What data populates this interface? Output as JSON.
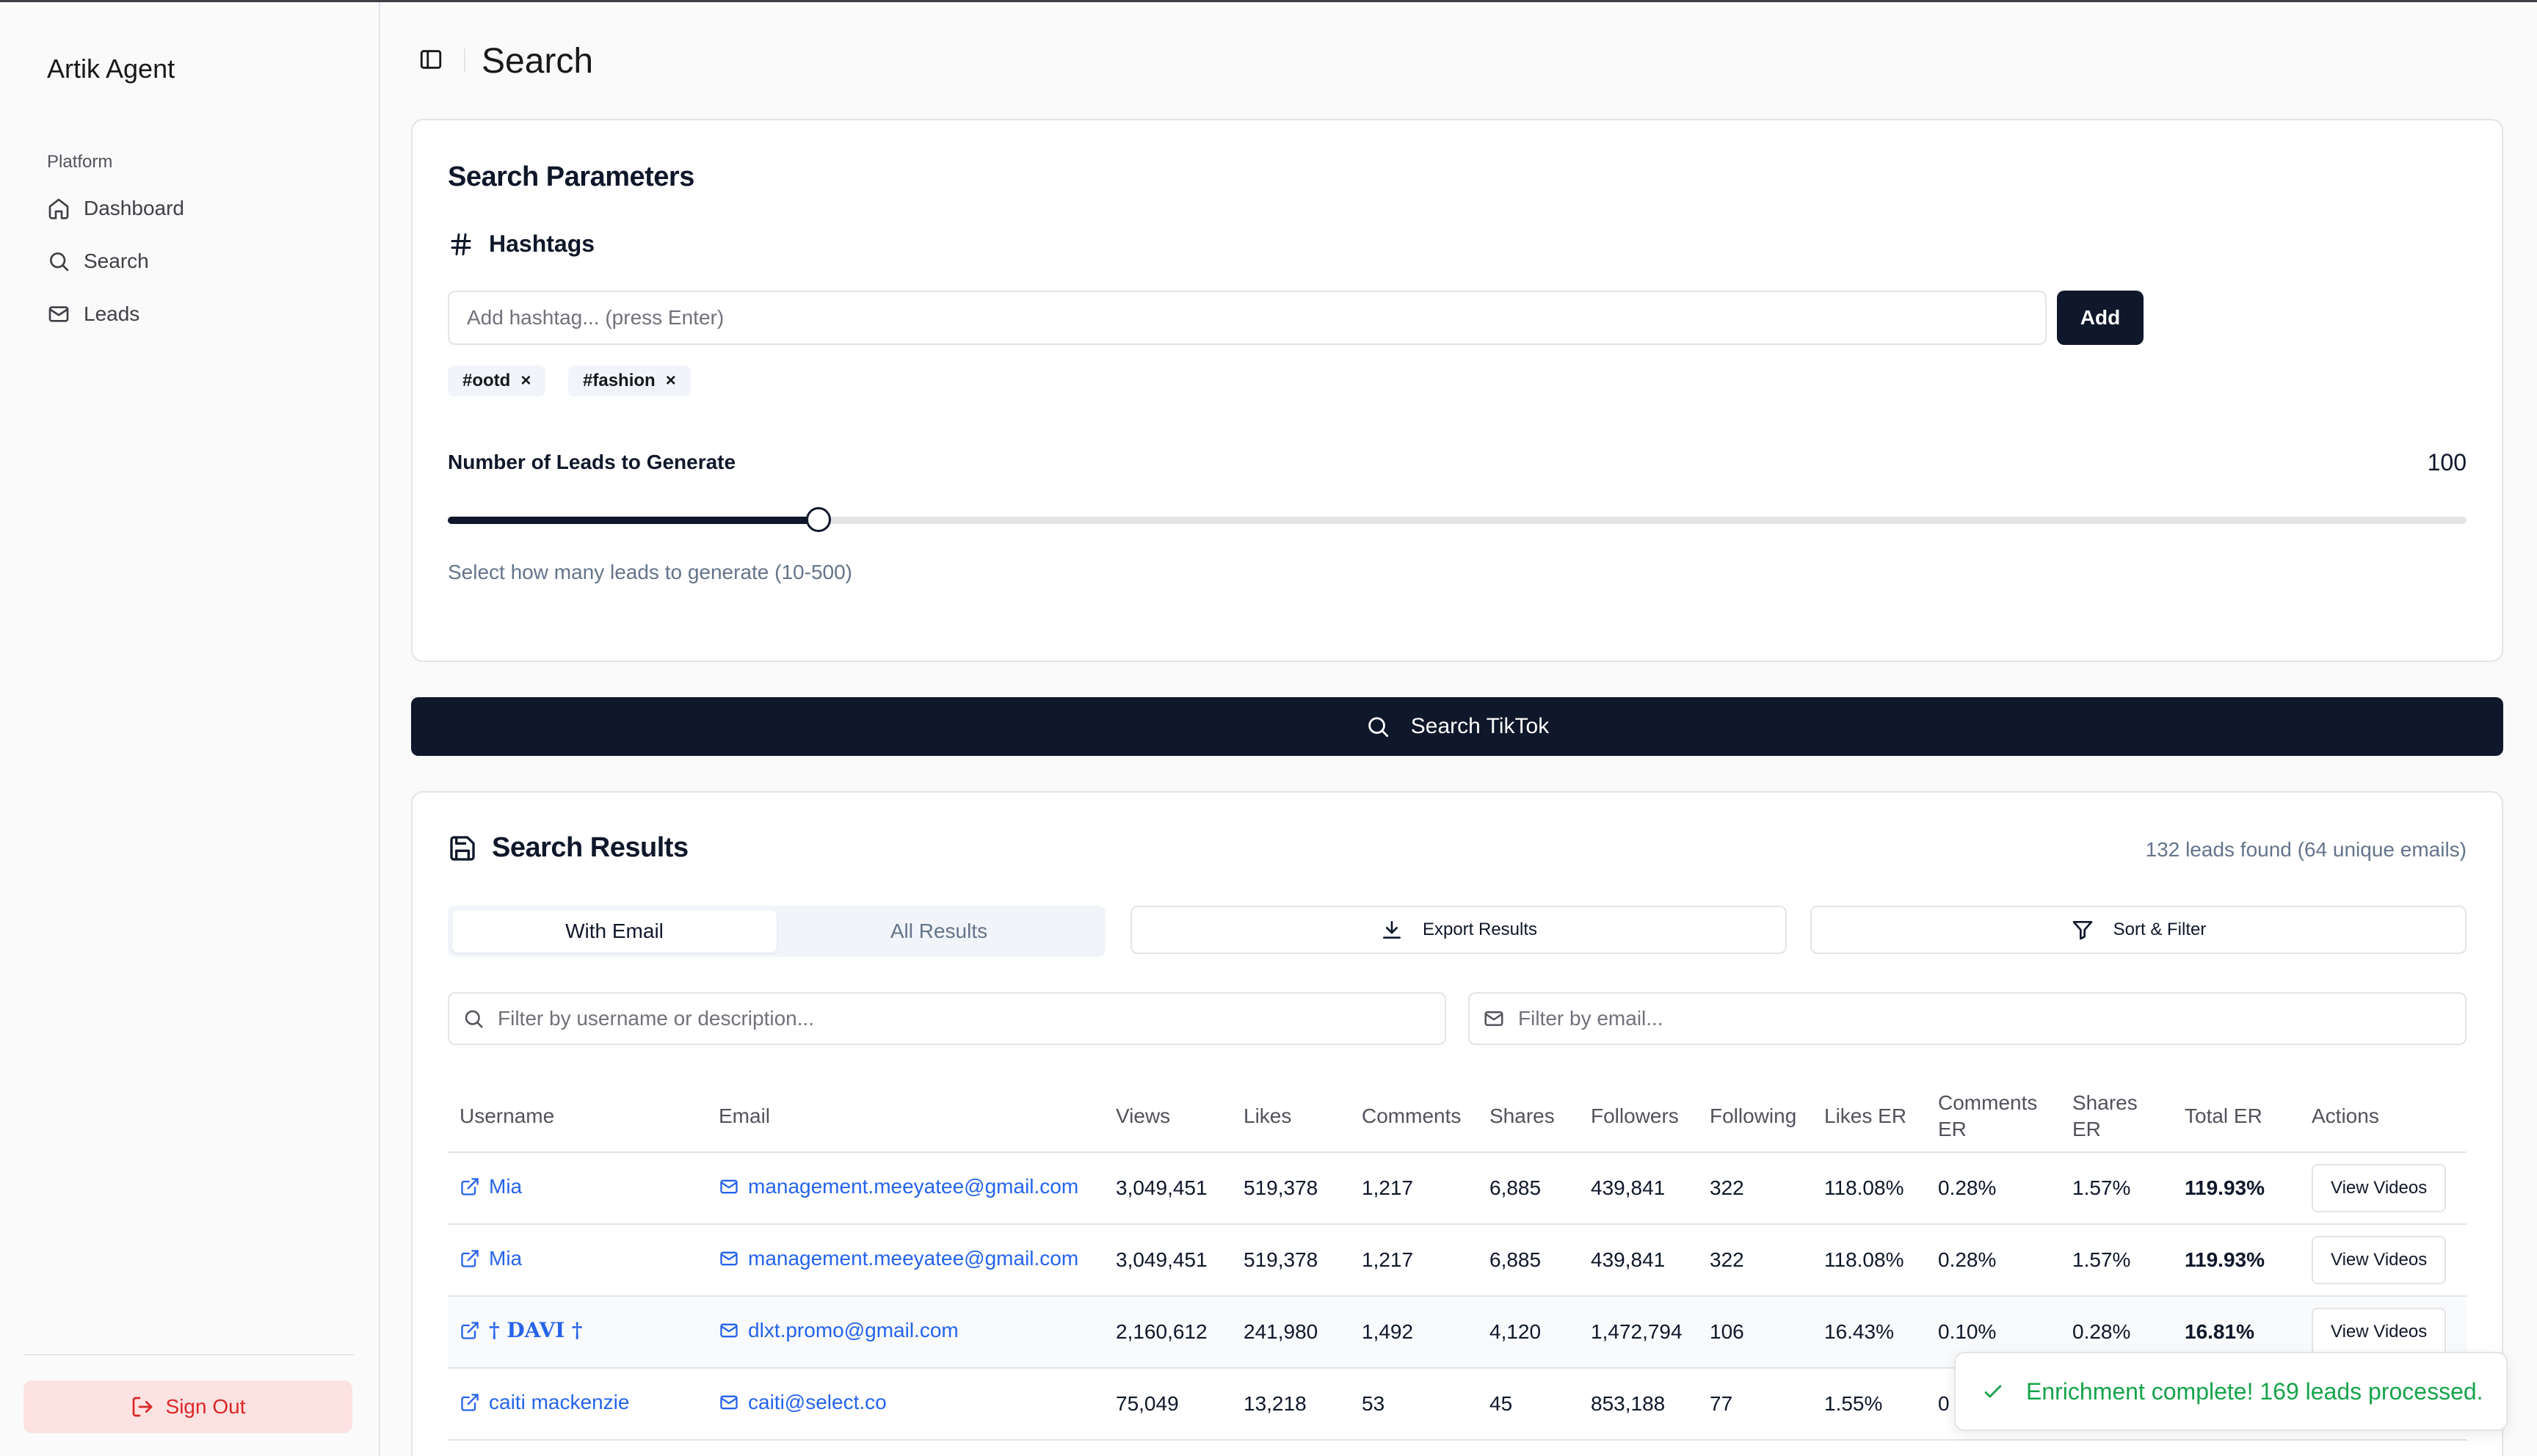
{
  "app": {
    "name": "Artik Agent"
  },
  "sidebar": {
    "group_label": "Platform",
    "items": [
      {
        "label": "Dashboard",
        "icon": "home-icon"
      },
      {
        "label": "Search",
        "icon": "search-icon"
      },
      {
        "label": "Leads",
        "icon": "mail-icon"
      }
    ],
    "signout_label": "Sign Out"
  },
  "header": {
    "title": "Search"
  },
  "params": {
    "title": "Search Parameters",
    "hashtags_label": "Hashtags",
    "input_placeholder": "Add hashtag... (press Enter)",
    "add_label": "Add",
    "chips": [
      "#ootd",
      "#fashion"
    ],
    "chip_remove": "×",
    "slider_label": "Number of Leads to Generate",
    "slider_value": "100",
    "slider_min": 10,
    "slider_max": 500,
    "slider_help": "Select how many leads to generate (10-500)"
  },
  "search_button": {
    "label": "Search TikTok"
  },
  "results": {
    "title": "Search Results",
    "count": "132 leads found (64 unique emails)",
    "tabs": [
      "With Email",
      "All Results"
    ],
    "export_label": "Export Results",
    "sort_label": "Sort & Filter",
    "filter_username_placeholder": "Filter by username or description...",
    "filter_email_placeholder": "Filter by email...",
    "columns": [
      "Username",
      "Email",
      "Views",
      "Likes",
      "Comments",
      "Shares",
      "Followers",
      "Following",
      "Likes ER",
      "Comments ER",
      "Shares ER",
      "Total ER",
      "Actions"
    ],
    "action_label": "View Videos",
    "rows": [
      {
        "username": "Mia",
        "email": "management.meeyatee@gmail.com",
        "views": "3,049,451",
        "likes": "519,378",
        "comments": "1,217",
        "shares": "6,885",
        "followers": "439,841",
        "following": "322",
        "likes_er": "118.08%",
        "comments_er": "0.28%",
        "shares_er": "1.57%",
        "total_er": "119.93%"
      },
      {
        "username": "Mia",
        "email": "management.meeyatee@gmail.com",
        "views": "3,049,451",
        "likes": "519,378",
        "comments": "1,217",
        "shares": "6,885",
        "followers": "439,841",
        "following": "322",
        "likes_er": "118.08%",
        "comments_er": "0.28%",
        "shares_er": "1.57%",
        "total_er": "119.93%"
      },
      {
        "username": "† DAVI †",
        "email": "dlxt.promo@gmail.com",
        "views": "2,160,612",
        "likes": "241,980",
        "comments": "1,492",
        "shares": "4,120",
        "followers": "1,472,794",
        "following": "106",
        "likes_er": "16.43%",
        "comments_er": "0.10%",
        "shares_er": "0.28%",
        "total_er": "16.81%"
      },
      {
        "username": "caiti mackenzie",
        "email": "caiti@select.co",
        "views": "75,049",
        "likes": "13,218",
        "comments": "53",
        "shares": "45",
        "followers": "853,188",
        "following": "77",
        "likes_er": "1.55%",
        "comments_er": "0",
        "shares_er": "",
        "total_er": ""
      }
    ]
  },
  "toast": {
    "message": "Enrichment complete! 169 leads processed."
  }
}
